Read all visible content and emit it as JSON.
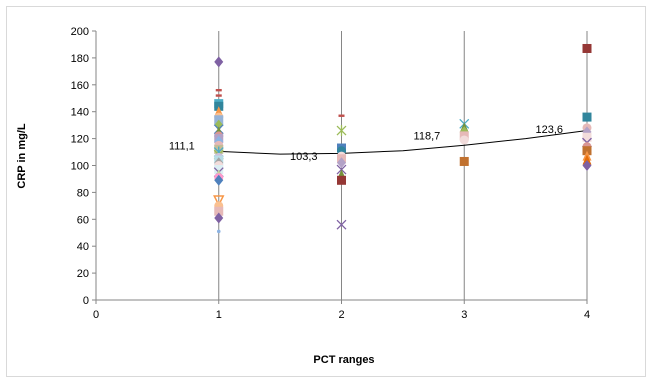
{
  "chart_data": {
    "type": "scatter",
    "title": "",
    "xlabel": "PCT ranges",
    "ylabel": "CRP in mg/L",
    "xlim": [
      0,
      4
    ],
    "ylim": [
      0,
      200
    ],
    "x_ticks": [
      "0",
      "1",
      "2",
      "3",
      "4"
    ],
    "y_ticks": [
      "0",
      "20",
      "40",
      "60",
      "80",
      "100",
      "120",
      "140",
      "160",
      "180",
      "200"
    ],
    "vertical_gridlines": true,
    "horizontal_gridlines": false,
    "legend": "none",
    "mean_labels": [
      {
        "x": 1,
        "y": 111.1,
        "text": "111,1"
      },
      {
        "x": 2,
        "y": 103.3,
        "text": "103,3"
      },
      {
        "x": 3,
        "y": 118.7,
        "text": "118,7"
      },
      {
        "x": 4,
        "y": 123.6,
        "text": "123,6"
      }
    ],
    "trendline": [
      [
        1,
        110.5
      ],
      [
        1.5,
        108.5
      ],
      [
        2,
        109
      ],
      [
        2.5,
        111
      ],
      [
        3,
        115
      ],
      [
        3.5,
        120
      ],
      [
        4,
        126
      ]
    ],
    "points": [
      {
        "x": 1,
        "y": 177,
        "shape": "diamond",
        "color": "#7f61a3"
      },
      {
        "x": 1,
        "y": 156,
        "shape": "dash",
        "color": "#c0504d"
      },
      {
        "x": 1,
        "y": 152,
        "shape": "dash",
        "color": "#c0504d"
      },
      {
        "x": 1,
        "y": 146,
        "shape": "square",
        "color": "#4bacc6"
      },
      {
        "x": 1,
        "y": 144,
        "shape": "square",
        "color": "#31859c"
      },
      {
        "x": 1,
        "y": 140,
        "shape": "triangle",
        "color": "#f79646"
      },
      {
        "x": 1,
        "y": 136,
        "shape": "circle",
        "color": "#fac090"
      },
      {
        "x": 1,
        "y": 134,
        "shape": "square",
        "color": "#95b3d7"
      },
      {
        "x": 1,
        "y": 130,
        "shape": "diamond",
        "color": "#9bbb59"
      },
      {
        "x": 1,
        "y": 127,
        "shape": "x",
        "color": "#4f81bd"
      },
      {
        "x": 1,
        "y": 125,
        "shape": "triangle",
        "color": "#76923c"
      },
      {
        "x": 1,
        "y": 122,
        "shape": "circle",
        "color": "#d99694"
      },
      {
        "x": 1,
        "y": 120,
        "shape": "square",
        "color": "#b3a2c7"
      },
      {
        "x": 1,
        "y": 118,
        "shape": "diamond",
        "color": "#8db3e2"
      },
      {
        "x": 1,
        "y": 115,
        "shape": "circle",
        "color": "#e6b9b8"
      },
      {
        "x": 1,
        "y": 112,
        "shape": "square",
        "color": "#c4bd97"
      },
      {
        "x": 1,
        "y": 110,
        "shape": "star",
        "color": "#4bacc6"
      },
      {
        "x": 1,
        "y": 108,
        "shape": "x",
        "color": "#9bbb59"
      },
      {
        "x": 1,
        "y": 106,
        "shape": "circle",
        "color": "#ccc1da"
      },
      {
        "x": 1,
        "y": 104,
        "shape": "square",
        "color": "#b7dde8"
      },
      {
        "x": 1,
        "y": 102,
        "shape": "diamond",
        "color": "#a5a5a5"
      },
      {
        "x": 1,
        "y": 100,
        "shape": "circle",
        "color": "#f2dcdb"
      },
      {
        "x": 1,
        "y": 97,
        "shape": "square",
        "color": "#dbeef4"
      },
      {
        "x": 1,
        "y": 95,
        "shape": "x",
        "color": "#8064a2"
      },
      {
        "x": 1,
        "y": 93,
        "shape": "triangle",
        "color": "#c3d69b"
      },
      {
        "x": 1,
        "y": 91,
        "shape": "circle",
        "color": "#ff99cc"
      },
      {
        "x": 1,
        "y": 89,
        "shape": "diamond",
        "color": "#4f81bd"
      },
      {
        "x": 1,
        "y": 74,
        "shape": "triangle-open",
        "color": "#f79646"
      },
      {
        "x": 1,
        "y": 70,
        "shape": "circle",
        "color": "#fac090"
      },
      {
        "x": 1,
        "y": 66,
        "shape": "square",
        "color": "#e6b9b8"
      },
      {
        "x": 1,
        "y": 61,
        "shape": "diamond",
        "color": "#7f61a3"
      },
      {
        "x": 1,
        "y": 51,
        "shape": "dot",
        "color": "#8db3e2"
      },
      {
        "x": 2,
        "y": 137,
        "shape": "dash",
        "color": "#c0504d"
      },
      {
        "x": 2,
        "y": 126,
        "shape": "star",
        "color": "#9bbb59"
      },
      {
        "x": 2,
        "y": 113,
        "shape": "square",
        "color": "#4f81bd"
      },
      {
        "x": 2,
        "y": 111,
        "shape": "circle",
        "color": "#31859c"
      },
      {
        "x": 2,
        "y": 107,
        "shape": "circle",
        "color": "#f2dcdb"
      },
      {
        "x": 2,
        "y": 105,
        "shape": "square",
        "color": "#e6b9b8"
      },
      {
        "x": 2,
        "y": 102,
        "shape": "diamond",
        "color": "#b3a2c7"
      },
      {
        "x": 2,
        "y": 97,
        "shape": "x",
        "color": "#7f61a3"
      },
      {
        "x": 2,
        "y": 93,
        "shape": "triangle",
        "color": "#76923c"
      },
      {
        "x": 2,
        "y": 89,
        "shape": "square",
        "color": "#953735"
      },
      {
        "x": 2,
        "y": 56,
        "shape": "x",
        "color": "#7f61a3"
      },
      {
        "x": 3,
        "y": 131,
        "shape": "x",
        "color": "#4bacc6"
      },
      {
        "x": 3,
        "y": 128,
        "shape": "triangle",
        "color": "#76923c"
      },
      {
        "x": 3,
        "y": 125,
        "shape": "diamond",
        "color": "#9bbb59"
      },
      {
        "x": 3,
        "y": 122,
        "shape": "square",
        "color": "#e6b9b8"
      },
      {
        "x": 3,
        "y": 119,
        "shape": "circle",
        "color": "#f2dcdb"
      },
      {
        "x": 3,
        "y": 103,
        "shape": "square",
        "color": "#c0712f"
      },
      {
        "x": 4,
        "y": 187,
        "shape": "square",
        "color": "#953735"
      },
      {
        "x": 4,
        "y": 136,
        "shape": "square",
        "color": "#31859c"
      },
      {
        "x": 4,
        "y": 128,
        "shape": "circle",
        "color": "#e6b9b8"
      },
      {
        "x": 4,
        "y": 125,
        "shape": "diamond",
        "color": "#b3a2c7"
      },
      {
        "x": 4,
        "y": 121,
        "shape": "square",
        "color": "#f2dcdb"
      },
      {
        "x": 4,
        "y": 117,
        "shape": "x",
        "color": "#7f61a3"
      },
      {
        "x": 4,
        "y": 114,
        "shape": "circle",
        "color": "#d99694"
      },
      {
        "x": 4,
        "y": 111,
        "shape": "square",
        "color": "#c0712f"
      },
      {
        "x": 4,
        "y": 107,
        "shape": "triangle",
        "color": "#f79646"
      },
      {
        "x": 4,
        "y": 104,
        "shape": "triangle",
        "color": "#e46c0a"
      },
      {
        "x": 4,
        "y": 100,
        "shape": "diamond",
        "color": "#7f61a3"
      }
    ]
  }
}
